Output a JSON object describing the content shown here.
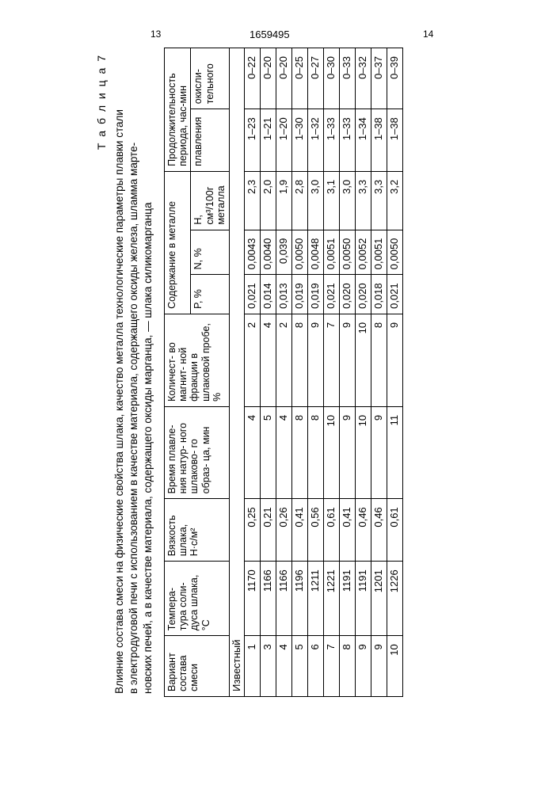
{
  "page": {
    "left_num": "13",
    "doc_num": "1659495",
    "right_num": "14"
  },
  "table_label": "Т а б л и ц а  7",
  "caption": "Влияние состава смеси на физические свойства шлака, качество металла технологические параметры плавки стали\nв электродуговой печи с использованием в качестве материала, содержащего оксиды железа, шламма марте-\nновских печей, а в качестве материала, содержащего оксиды марганца, — шлака силикомарганца",
  "headers": {
    "c1": "Вариант\nсостава\nсмеси",
    "c2": "Темпера-\nтура соли-\nдуса\nшлака, °С",
    "c3": "Вязкость\nшлака,\nН·с/м²",
    "c4": "Время\nплавле-\nния натур-\nного\nшлаково-\nго образ-\nца, мин",
    "c5": "Количест-\nво магнит-\nной\nфракции в\nшлаковой\nпробе, %",
    "g6": "Содержание в металле",
    "c6a": "P, %",
    "c6b": "N, %",
    "c6c": "H,\nсм³/100г\nметалла",
    "g7": "Продолжительность\nпериода, час-мин",
    "c7a": "плавления",
    "c7b": "окисли-\nтельного"
  },
  "section_label": "Известный",
  "rows": [
    {
      "v": "1",
      "t": "1170",
      "visc": "0,25",
      "time": "4",
      "mag": "2",
      "p": "0,021",
      "n": "0,0043",
      "h": "2,3",
      "d1": "1–23",
      "d2": "0–22"
    },
    {
      "v": "3",
      "t": "1166",
      "visc": "0,21",
      "time": "5",
      "mag": "4",
      "p": "0,014",
      "n": "0,0040",
      "h": "2,0",
      "d1": "1–21",
      "d2": "0–20"
    },
    {
      "v": "4",
      "t": "1166",
      "visc": "0,26",
      "time": "4",
      "mag": "2",
      "p": "0,013",
      "n": "0,039",
      "h": "1,9",
      "d1": "1–20",
      "d2": "0–20"
    },
    {
      "v": "5",
      "t": "1196",
      "visc": "0,41",
      "time": "8",
      "mag": "8",
      "p": "0,019",
      "n": "0,0050",
      "h": "2,8",
      "d1": "1–30",
      "d2": "0–25"
    },
    {
      "v": "6",
      "t": "1211",
      "visc": "0,56",
      "time": "8",
      "mag": "9",
      "p": "0,019",
      "n": "0,0048",
      "h": "3,0",
      "d1": "1–32",
      "d2": "0–27"
    },
    {
      "v": "7",
      "t": "1221",
      "visc": "0,61",
      "time": "10",
      "mag": "7",
      "p": "0,021",
      "n": "0,0051",
      "h": "3,1",
      "d1": "1–33",
      "d2": "0–30"
    },
    {
      "v": "8",
      "t": "1191",
      "visc": "0,41",
      "time": "9",
      "mag": "9",
      "p": "0,020",
      "n": "0,0050",
      "h": "3,0",
      "d1": "1–33",
      "d2": "0–33"
    },
    {
      "v": "9",
      "t": "1191",
      "visc": "0,46",
      "time": "10",
      "mag": "10",
      "p": "0,020",
      "n": "0,0052",
      "h": "3,3",
      "d1": "1–34",
      "d2": "0–32"
    },
    {
      "v": "9",
      "t": "1201",
      "visc": "0,46",
      "time": "9",
      "mag": "8",
      "p": "0,018",
      "n": "0,0051",
      "h": "3,3",
      "d1": "1–38",
      "d2": "0–37"
    },
    {
      "v": "10",
      "t": "1226",
      "visc": "0,61",
      "time": "11",
      "mag": "9",
      "p": "0,021",
      "n": "0,0050",
      "h": "3,2",
      "d1": "1–38",
      "d2": "0–39"
    }
  ]
}
